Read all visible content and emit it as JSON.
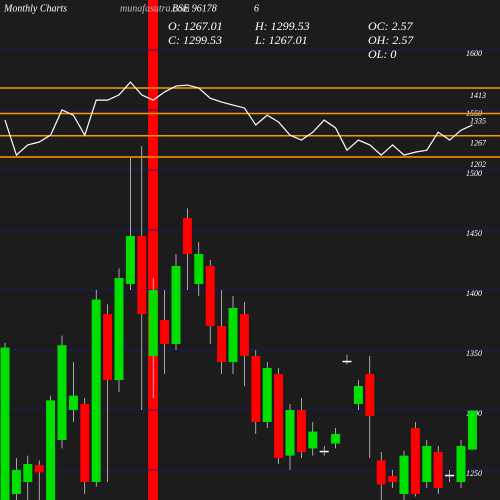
{
  "header": {
    "site": "Monthly Charts",
    "brand": "munafasutra.com",
    "symbol": "BSE 96178",
    "extra": "6",
    "stats": [
      [
        "O: 1267.01",
        "H: 1299.53",
        "OC: 2.57"
      ],
      [
        "C: 1299.53",
        "L: 1267.01",
        "OH: 2.57"
      ],
      [
        "OL: 0"
      ]
    ]
  },
  "chart_data": [
    {
      "type": "candlestick",
      "ylim": [
        1225,
        1641.67
      ],
      "yticks": [
        1250,
        1300,
        1350,
        1400,
        1450,
        1500,
        1550,
        1600
      ],
      "grid": true,
      "up_color": "#00e000",
      "down_color": "#ff0000",
      "open": [
        1225,
        1230,
        1240,
        1254,
        1225,
        1275,
        1300,
        1305,
        1240,
        1380,
        1325,
        1405,
        1445,
        1345,
        1375,
        1355,
        1460,
        1405,
        1420,
        1370,
        1340,
        1380,
        1345,
        1290,
        1330,
        1262,
        1300,
        1268,
        1265,
        1272,
        1340,
        1305,
        1330,
        1258,
        1245,
        1230,
        1285,
        1240,
        1265,
        1245,
        1240,
        1267.01
      ],
      "high": [
        1356,
        1260,
        1262,
        1258,
        1312,
        1362,
        1340,
        1310,
        1400,
        1388,
        1418,
        1510,
        1520,
        1410,
        1400,
        1430,
        1468,
        1440,
        1425,
        1400,
        1395,
        1390,
        1350,
        1340,
        1335,
        1305,
        1310,
        1290,
        1270,
        1285,
        1346,
        1325,
        1345,
        1265,
        1250,
        1266,
        1290,
        1275,
        1270,
        1250,
        1275,
        1299.53
      ],
      "low": [
        1215,
        1210,
        1220,
        1225,
        1218,
        1268,
        1290,
        1230,
        1236,
        1240,
        1315,
        1400,
        1300,
        1310,
        1330,
        1350,
        1400,
        1395,
        1355,
        1330,
        1330,
        1320,
        1280,
        1285,
        1255,
        1250,
        1260,
        1262,
        1262,
        1268,
        1338,
        1300,
        1260,
        1220,
        1235,
        1225,
        1228,
        1235,
        1230,
        1240,
        1235,
        1267.01
      ],
      "close": [
        1352,
        1250,
        1255,
        1248,
        1308,
        1354,
        1312,
        1240,
        1392,
        1325,
        1410,
        1445,
        1380,
        1400,
        1355,
        1420,
        1430,
        1430,
        1370,
        1340,
        1385,
        1345,
        1290,
        1335,
        1260,
        1300,
        1265,
        1282,
        1266,
        1280,
        1341,
        1320,
        1295,
        1238,
        1240,
        1262,
        1230,
        1270,
        1235,
        1246,
        1270,
        1299.53
      ]
    },
    {
      "type": "line",
      "color": "#ffffff",
      "ylim": [
        1193,
        1682
      ],
      "levels": [
        1413,
        1335,
        1267,
        1202
      ],
      "level_color": "#ff9900",
      "values": [
        1315,
        1208,
        1239,
        1248,
        1269,
        1346,
        1330,
        1269,
        1376,
        1376,
        1392,
        1431,
        1392,
        1376,
        1401,
        1419,
        1422,
        1413,
        1382,
        1370,
        1361,
        1352,
        1300,
        1330,
        1309,
        1269,
        1254,
        1278,
        1315,
        1291,
        1223,
        1254,
        1239,
        1208,
        1239,
        1208,
        1217,
        1223,
        1278,
        1254,
        1284,
        1300
      ]
    }
  ]
}
